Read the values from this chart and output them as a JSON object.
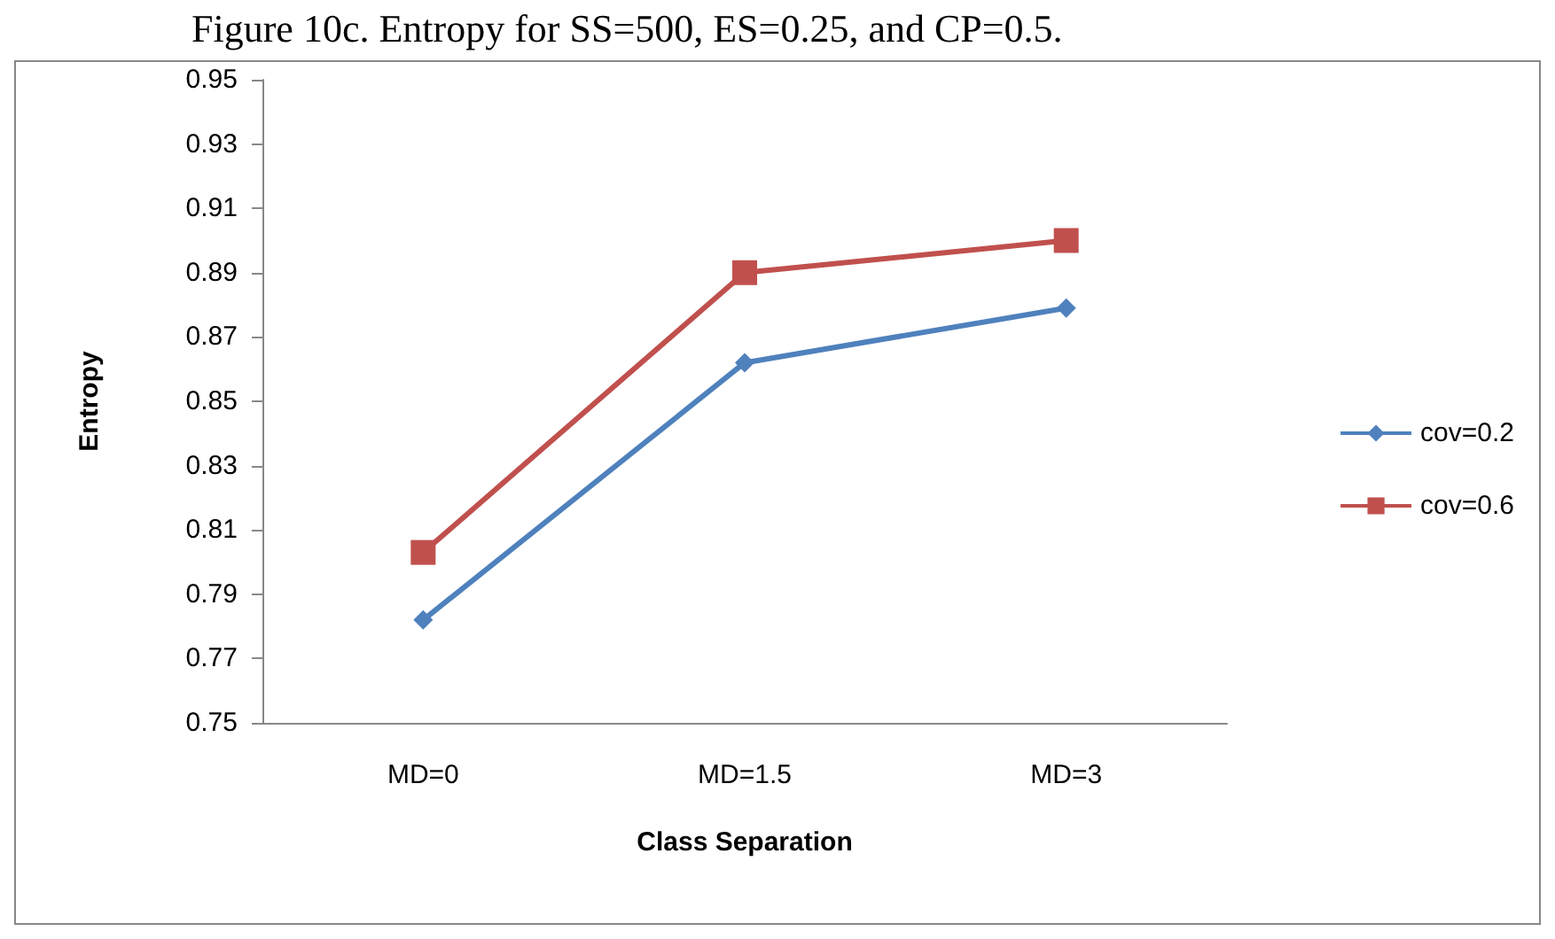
{
  "chart_data": {
    "type": "line",
    "title": "Figure 10c. Entropy for SS=500, ES=0.25, and CP=0.5.",
    "xlabel": "Class Separation",
    "ylabel": "Entropy",
    "categories": [
      "MD=0",
      "MD=1.5",
      "MD=3"
    ],
    "series": [
      {
        "name": "cov=0.2",
        "color": "#4f81bd",
        "marker": "diamond",
        "values": [
          0.782,
          0.862,
          0.879
        ]
      },
      {
        "name": "cov=0.6",
        "color": "#c0504d",
        "marker": "square",
        "values": [
          0.803,
          0.89,
          0.9
        ]
      }
    ],
    "ylim": [
      0.75,
      0.95
    ],
    "yticks": [
      0.75,
      0.77,
      0.79,
      0.81,
      0.83,
      0.85,
      0.87,
      0.89,
      0.91,
      0.93,
      0.95
    ],
    "grid": false,
    "legend": "right"
  }
}
